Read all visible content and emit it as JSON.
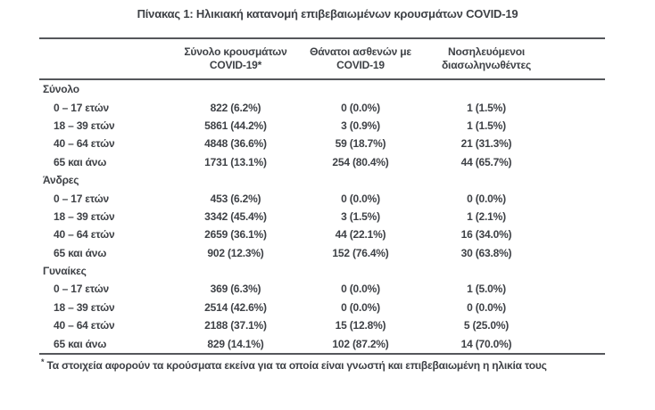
{
  "title": "Πίνακας 1: Ηλικιακή κατανομή επιβεβαιωμένων κρουσμάτων COVID-19",
  "colors": {
    "text": "#3e4146",
    "border": "#55575b",
    "background": "#ffffff"
  },
  "table": {
    "columns": [
      {
        "line1": "Σύνολο κρουσμάτων",
        "line2": "COVID-19*"
      },
      {
        "line1": "Θάνατοι ασθενών με",
        "line2": "COVID-19"
      },
      {
        "line1": "Νοσηλευόμενοι",
        "line2": "διασωληνωθέντες"
      }
    ],
    "sections": [
      {
        "label": "Σύνολο",
        "rows": [
          {
            "age": "0 – 17 ετών",
            "cases": "822 (6.2%)",
            "deaths": "0 (0.0%)",
            "intubated": "1 (1.5%)"
          },
          {
            "age": "18 – 39 ετών",
            "cases": "5861 (44.2%)",
            "deaths": "3 (0.9%)",
            "intubated": "1 (1.5%)"
          },
          {
            "age": "40 – 64 ετών",
            "cases": "4848 (36.6%)",
            "deaths": "59 (18.7%)",
            "intubated": "21 (31.3%)"
          },
          {
            "age": "65 και άνω",
            "cases": "1731 (13.1%)",
            "deaths": "254 (80.4%)",
            "intubated": "44 (65.7%)"
          }
        ]
      },
      {
        "label": "Άνδρες",
        "rows": [
          {
            "age": "0 – 17 ετών",
            "cases": "453 (6.2%)",
            "deaths": "0 (0.0%)",
            "intubated": "0 (0.0%)"
          },
          {
            "age": "18 – 39 ετών",
            "cases": "3342 (45.4%)",
            "deaths": "3 (1.5%)",
            "intubated": "1 (2.1%)"
          },
          {
            "age": "40 – 64 ετών",
            "cases": "2659 (36.1%)",
            "deaths": "44 (22.1%)",
            "intubated": "16 (34.0%)"
          },
          {
            "age": "65 και άνω",
            "cases": "902 (12.3%)",
            "deaths": "152 (76.4%)",
            "intubated": "30 (63.8%)"
          }
        ]
      },
      {
        "label": "Γυναίκες",
        "rows": [
          {
            "age": "0 – 17 ετών",
            "cases": "369 (6.3%)",
            "deaths": "0 (0.0%)",
            "intubated": "1 (5.0%)"
          },
          {
            "age": "18 – 39 ετών",
            "cases": "2514 (42.6%)",
            "deaths": "0 (0.0%)",
            "intubated": "0 (0.0%)"
          },
          {
            "age": "40 – 64 ετών",
            "cases": "2188 (37.1%)",
            "deaths": "15 (12.8%)",
            "intubated": "5 (25.0%)"
          },
          {
            "age": "65 και άνω",
            "cases": "829 (14.1%)",
            "deaths": "102 (87.2%)",
            "intubated": "14 (70.0%)"
          }
        ]
      }
    ]
  },
  "footnote": {
    "marker": "*",
    "text": "Τα στοιχεία αφορούν τα κρούσματα εκείνα για τα οποία είναι γνωστή και επιβεβαιωμένη η ηλικία τους"
  }
}
